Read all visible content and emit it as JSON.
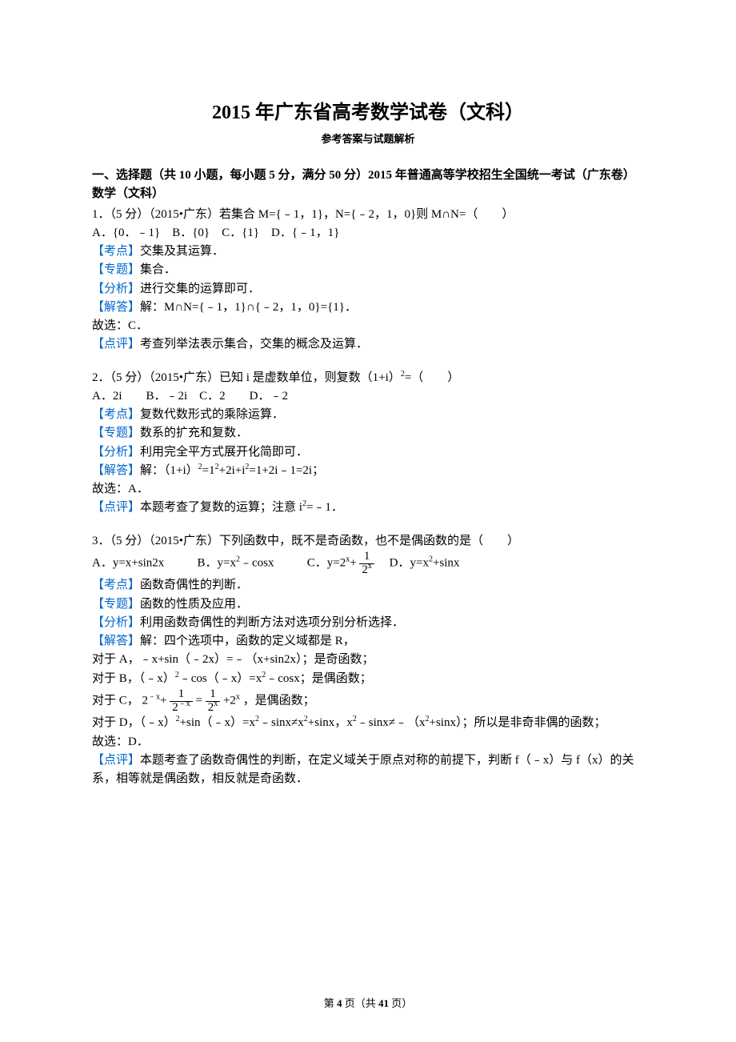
{
  "title": "2015 年广东省高考数学试卷（文科）",
  "subtitle": "参考答案与试题解析",
  "section_heading": "一、选择题（共 10 小题，每小题 5 分，满分 50 分）2015 年普通高等学校招生全国统一考试（广东卷）数学（文科）",
  "colors": {
    "text": "#000000",
    "label": "#0066cc",
    "background": "#ffffff"
  },
  "labels": {
    "kaodian": "【考点】",
    "zhuanti": "【专题】",
    "fenxi": "【分析】",
    "jieda": "【解答】",
    "dianping": "【点评】"
  },
  "q1": {
    "stem": "1．（5 分）（2015•广东）若集合 M={﹣1，1}，N={﹣2，1，0}则 M∩N=（　　）",
    "options": "A．{0．﹣1}　B．{0}　C．{1}　D．{﹣1，1}",
    "kaodian": "交集及其运算．",
    "zhuanti": "集合．",
    "fenxi": "进行交集的运算即可．",
    "jieda": "解：M∩N={﹣1，1}∩{﹣2，1，0}={1}．",
    "jieda2": "故选：C．",
    "dianping": "考查列举法表示集合，交集的概念及运算．"
  },
  "q2": {
    "stem_a": "2．（5 分）（2015•广东）已知 i 是虚数单位，则复数（1+i）",
    "stem_b": "=（　　）",
    "options": "A．2i　　B．﹣2i　C．2　　D．﹣2",
    "kaodian": "复数代数形式的乘除运算．",
    "zhuanti": "数系的扩充和复数．",
    "fenxi": "利用完全平方式展开化简即可．",
    "jieda_a": "解：（1+i）",
    "jieda_b": "=1",
    "jieda_c": "+2i+i",
    "jieda_d": "=1+2i﹣1=2i；",
    "jieda2": "故选：A．",
    "dianping_a": "本题考查了复数的运算；注意 i",
    "dianping_b": "=﹣1．"
  },
  "q3": {
    "stem": "3．（5 分）（2015•广东）下列函数中，既不是奇函数，也不是偶函数的是（　　）",
    "optA": "A．y=x+sin2x",
    "optB": "B．y=x",
    "optB2": "﹣cosx",
    "optC": "C．y=2",
    "optC2": "+",
    "optD": "　D．y=x",
    "optD2": "+sinx",
    "kaodian": "函数奇偶性的判断．",
    "zhuanti": "函数的性质及应用．",
    "fenxi": "利用函数奇偶性的判断方法对选项分别分析选择．",
    "lineA": "解：四个选项中，函数的定义域都是 R，",
    "lineB": "对于 A，﹣x+sin（﹣2x）=﹣（x+sin2x）；是奇函数；",
    "lineC_a": "对于 B，（﹣x）",
    "lineC_b": "﹣cos（﹣x）=x",
    "lineC_c": "﹣cosx；是偶函数；",
    "lineD_a": "对于 C，",
    "lineD_b": "，是偶函数；",
    "lineE_a": "对于 D，（﹣x）",
    "lineE_b": "+sin（﹣x）=x",
    "lineE_c": "﹣sinx≠x",
    "lineE_d": "+sinx，x",
    "lineE_e": "﹣sinx≠﹣（x",
    "lineE_f": "+sinx）；所以是非奇非偶的函数；",
    "lineF": "故选：D．",
    "dianping": "本题考查了函数奇偶性的判断，在定义域关于原点对称的前提下，判断 f（﹣x）与 f（x）的关系，相等就是偶函数，相反就是奇函数．",
    "frac1": {
      "num": "1",
      "den": "2"
    },
    "frac1_den_sup": "x",
    "frac2": {
      "num": "1",
      "den": "2"
    },
    "frac3": {
      "num": "1",
      "den": "2"
    }
  },
  "footer": {
    "prefix": "第 ",
    "current": "4",
    "mid": " 页（共 ",
    "total": "41",
    "suffix": " 页）"
  }
}
